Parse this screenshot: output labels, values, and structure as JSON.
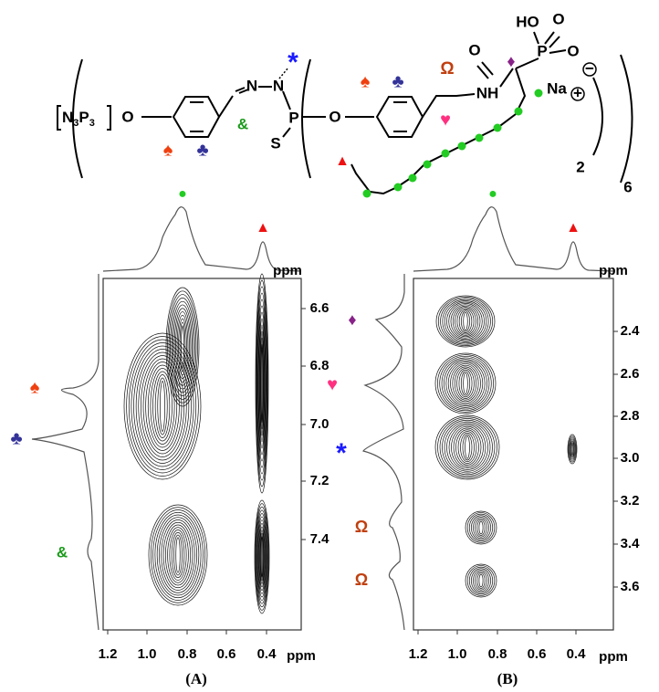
{
  "structure": {
    "core": [
      "N",
      "3",
      "P",
      "3"
    ],
    "atoms": [
      "O",
      "N",
      "N",
      "P",
      "S",
      "O",
      "NH",
      "O",
      "HO",
      "O",
      "P",
      "O",
      "Na"
    ],
    "charges": [
      "−",
      "+"
    ],
    "subscripts": [
      "2",
      "6"
    ],
    "markers": [
      "&",
      "*",
      "♠",
      "♣",
      "♠",
      "♣",
      "Ω",
      "♥",
      "♦",
      "▲"
    ]
  },
  "panels": [
    {
      "label": "(A)",
      "x_unit": "ppm",
      "y_unit": "ppm",
      "xticks": [
        "1.2",
        "1.0",
        "0.8",
        "0.6",
        "0.4"
      ],
      "yticks": [
        "6.6",
        "6.8",
        "7.0",
        "7.2",
        "7.4"
      ],
      "top_markers": [
        "●",
        "▲"
      ],
      "side_markers": [
        "♠",
        "♣",
        "&"
      ]
    },
    {
      "label": "(B)",
      "x_unit": "ppm",
      "y_unit": "ppm",
      "xticks": [
        "1.2",
        "1.0",
        "0.8",
        "0.6",
        "0.4"
      ],
      "yticks": [
        "2.4",
        "2.6",
        "2.8",
        "3.0",
        "3.2",
        "3.4",
        "3.6"
      ],
      "top_markers": [
        "●",
        "▲"
      ],
      "side_markers": [
        "♦",
        "♥",
        "*",
        "Ω",
        "Ω"
      ]
    }
  ]
}
